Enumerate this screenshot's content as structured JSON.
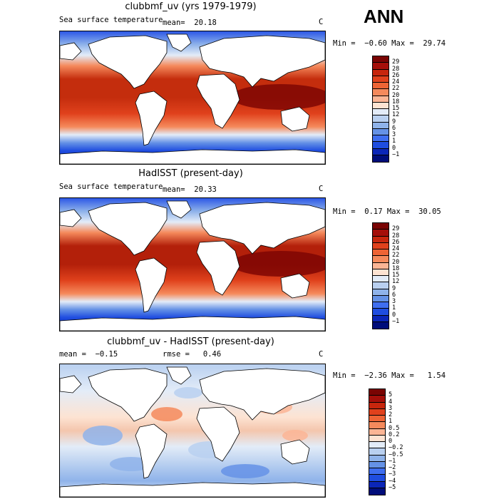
{
  "season": "ANN",
  "panels": [
    {
      "title": "clubbmf_uv (yrs 1979-1979)",
      "left_label": "Sea surface temperature",
      "stat_text": "mean=  20.18",
      "units": "C",
      "minmax": "Min =  −0.60 Max =  29.74",
      "colorbar_labels": [
        "29",
        "28",
        "26",
        "24",
        "22",
        "20",
        "18",
        "15",
        "12",
        "9",
        "6",
        "3",
        "1",
        "0",
        "−1"
      ],
      "colorbar_colors": [
        "#7a0403",
        "#a50f0a",
        "#c7260d",
        "#e0411c",
        "#ee6435",
        "#f58a5c",
        "#fbb595",
        "#fde3d2",
        "#e3ecf8",
        "#b9d0f0",
        "#8fb3ea",
        "#6592e6",
        "#3f6ef0",
        "#1f4de0",
        "#0b26b8",
        "#000d7a"
      ],
      "tropic_color": "#c42d0d"
    },
    {
      "title": "HadISST (present-day)",
      "left_label": "Sea surface temperature",
      "stat_text": "mean=  20.33",
      "units": "C",
      "minmax": "Min =  0.17 Max =  30.05",
      "colorbar_labels": [
        "29",
        "28",
        "26",
        "24",
        "22",
        "20",
        "18",
        "15",
        "12",
        "9",
        "6",
        "3",
        "1",
        "0",
        "−1"
      ],
      "colorbar_colors": [
        "#7a0403",
        "#a50f0a",
        "#c7260d",
        "#e0411c",
        "#ee6435",
        "#f58a5c",
        "#fbb595",
        "#fde3d2",
        "#e3ecf8",
        "#b9d0f0",
        "#8fb3ea",
        "#6592e6",
        "#3f6ef0",
        "#1f4de0",
        "#0b26b8",
        "#000d7a"
      ],
      "tropic_color": "#b3200a"
    },
    {
      "title": "clubbmf_uv - HadISST (present-day)",
      "left_label": "mean =  −0.15",
      "stat_text": "rmse =   0.46",
      "units": "C",
      "minmax": "Min =  −2.36 Max =   1.54",
      "colorbar_labels": [
        "5",
        "4",
        "3",
        "2",
        "1",
        "0.5",
        "0.2",
        "0",
        "−0.2",
        "−0.5",
        "−1",
        "−2",
        "−3",
        "−4",
        "−5"
      ],
      "colorbar_colors": [
        "#7a0403",
        "#a50f0a",
        "#c7260d",
        "#e0411c",
        "#ee6435",
        "#f58a5c",
        "#fbb595",
        "#fde3d2",
        "#e3ecf8",
        "#b9d0f0",
        "#8fb3ea",
        "#6592e6",
        "#3f6ef0",
        "#1f4de0",
        "#0b26b8",
        "#000d7a"
      ],
      "tropic_color": "#f4c6ad"
    }
  ]
}
